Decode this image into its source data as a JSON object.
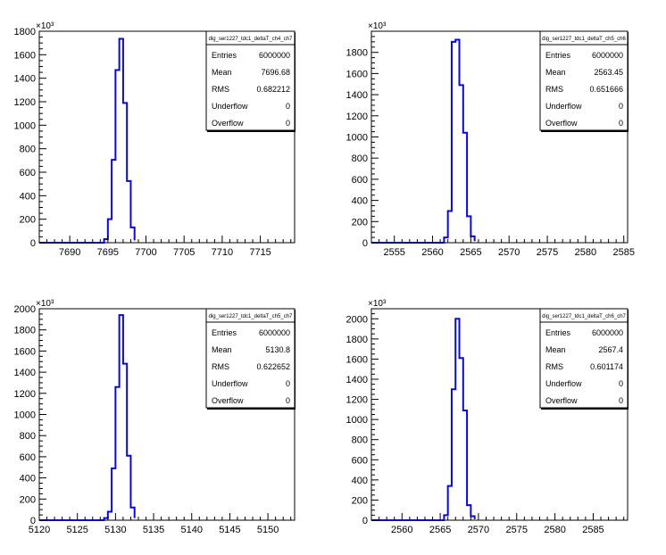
{
  "chart_data": [
    {
      "type": "histogram",
      "stats_title": "dig_ser1227_tdc1_deltaT_ch4_ch7",
      "stats": [
        {
          "label": "Entries",
          "value": "6000000"
        },
        {
          "label": "Mean",
          "value": "7696.68"
        },
        {
          "label": "RMS",
          "value": "0.682212"
        },
        {
          "label": "Underflow",
          "value": "0"
        },
        {
          "label": "Overflow",
          "value": "0"
        }
      ],
      "y_exponent_label": "×10³",
      "xlim": [
        7686,
        7719.5
      ],
      "ylim": [
        0,
        1800
      ],
      "x_ticks": [
        7690,
        7695,
        7700,
        7705,
        7710,
        7715
      ],
      "x_tick_labels": [
        "7690",
        "7695",
        "7700",
        "7705",
        "7710",
        "7715"
      ],
      "y_ticks": [
        0,
        200,
        400,
        600,
        800,
        1000,
        1200,
        1400,
        1600,
        1800
      ],
      "y_tick_labels": [
        "0",
        "200",
        "400",
        "600",
        "800",
        "1000",
        "1200",
        "1400",
        "1600",
        "1800"
      ],
      "bin_edges": [
        7694.5,
        7695.0,
        7695.5,
        7696.0,
        7696.5,
        7697.0,
        7697.5,
        7698.0,
        7698.5
      ],
      "counts": [
        30,
        200,
        705,
        1470,
        1735,
        1190,
        525,
        130,
        20
      ]
    },
    {
      "type": "histogram",
      "stats_title": "dig_ser1227_tdc1_deltaT_ch5_ch6",
      "stats": [
        {
          "label": "Entries",
          "value": "6000000"
        },
        {
          "label": "Mean",
          "value": "2563.45"
        },
        {
          "label": "RMS",
          "value": "0.651666"
        },
        {
          "label": "Underflow",
          "value": "0"
        },
        {
          "label": "Overflow",
          "value": "0"
        }
      ],
      "y_exponent_label": "×10³",
      "xlim": [
        2552,
        2585.5
      ],
      "ylim": [
        0,
        2000
      ],
      "x_ticks": [
        2555,
        2560,
        2565,
        2570,
        2575,
        2580,
        2585
      ],
      "x_tick_labels": [
        "2555",
        "2560",
        "2565",
        "2570",
        "2575",
        "2580",
        "2585"
      ],
      "y_ticks": [
        0,
        200,
        400,
        600,
        800,
        1000,
        1200,
        1400,
        1600,
        1800
      ],
      "y_tick_labels": [
        "0",
        "200",
        "400",
        "600",
        "800",
        "1000",
        "1200",
        "1400",
        "1600",
        "1800"
      ],
      "bin_edges": [
        2561.5,
        2562.0,
        2562.5,
        2563.0,
        2563.5,
        2564.0,
        2564.5,
        2565.0,
        2565.5
      ],
      "counts": [
        50,
        300,
        1900,
        1920,
        1490,
        1040,
        250,
        60,
        15
      ]
    },
    {
      "type": "histogram",
      "stats_title": "dig_ser1227_tdc1_deltaT_ch5_ch7",
      "stats": [
        {
          "label": "Entries",
          "value": "6000000"
        },
        {
          "label": "Mean",
          "value": "5130.8"
        },
        {
          "label": "RMS",
          "value": "0.622652"
        },
        {
          "label": "Underflow",
          "value": "0"
        },
        {
          "label": "Overflow",
          "value": "0"
        }
      ],
      "y_exponent_label": "×10³",
      "xlim": [
        5120,
        5153.5
      ],
      "ylim": [
        0,
        2000
      ],
      "x_ticks": [
        5120,
        5125,
        5130,
        5135,
        5140,
        5145,
        5150
      ],
      "x_tick_labels": [
        "5120",
        "5125",
        "5130",
        "5135",
        "5140",
        "5145",
        "5150"
      ],
      "y_ticks": [
        0,
        200,
        400,
        600,
        800,
        1000,
        1200,
        1400,
        1600,
        1800,
        2000
      ],
      "y_tick_labels": [
        "0",
        "200",
        "400",
        "600",
        "800",
        "1000",
        "1200",
        "1400",
        "1600",
        "1800",
        "2000"
      ],
      "bin_edges": [
        5128.5,
        5129.0,
        5129.5,
        5130.0,
        5130.5,
        5131.0,
        5131.5,
        5132.0,
        5132.5
      ],
      "counts": [
        20,
        80,
        490,
        1260,
        1940,
        1480,
        610,
        120,
        20
      ]
    },
    {
      "type": "histogram",
      "stats_title": "dig_ser1227_tdc1_deltaT_ch6_ch7",
      "stats": [
        {
          "label": "Entries",
          "value": "6000000"
        },
        {
          "label": "Mean",
          "value": "2567.4"
        },
        {
          "label": "RMS",
          "value": "0.601174"
        },
        {
          "label": "Underflow",
          "value": "0"
        },
        {
          "label": "Overflow",
          "value": "0"
        }
      ],
      "y_exponent_label": "×10³",
      "xlim": [
        2556,
        2589.5
      ],
      "ylim": [
        0,
        2100
      ],
      "x_ticks": [
        2560,
        2565,
        2570,
        2575,
        2580,
        2585
      ],
      "x_tick_labels": [
        "2560",
        "2565",
        "2570",
        "2575",
        "2580",
        "2585"
      ],
      "y_ticks": [
        0,
        200,
        400,
        600,
        800,
        1000,
        1200,
        1400,
        1600,
        1800,
        2000
      ],
      "y_tick_labels": [
        "0",
        "200",
        "400",
        "600",
        "800",
        "1000",
        "1200",
        "1400",
        "1600",
        "1800",
        "2000"
      ],
      "bin_edges": [
        2565.5,
        2566.0,
        2566.5,
        2567.0,
        2567.5,
        2568.0,
        2568.5,
        2569.0,
        2569.5
      ],
      "counts": [
        50,
        340,
        1300,
        2000,
        1610,
        1090,
        150,
        40,
        10
      ]
    }
  ],
  "colors": {
    "histogram_line": "#0a0ad2",
    "axis": "#000000",
    "frame": "#000000",
    "background": "#ffffff"
  }
}
